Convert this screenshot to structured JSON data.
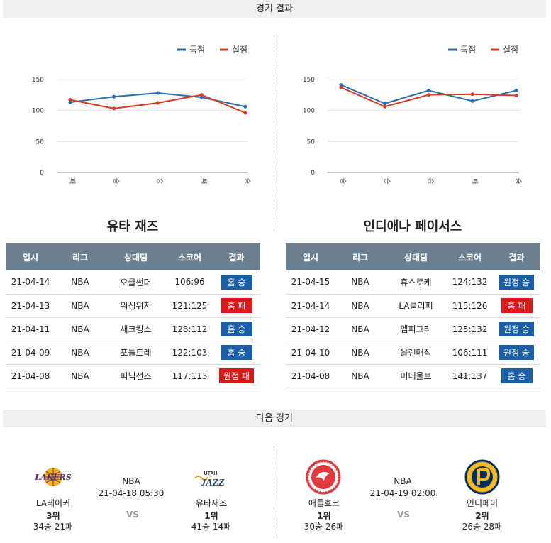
{
  "header": {
    "title": "경기 결과"
  },
  "next": {
    "title": "다음 경기"
  },
  "legend": {
    "score": "득점",
    "conceded": "실점"
  },
  "colors": {
    "score": "#2a6bb0",
    "conceded": "#d83a1f",
    "win": "#1a5fa8",
    "loss": "#d91a1a",
    "header": "#6b7f8e"
  },
  "left": {
    "team": "유타 재즈",
    "chart_data": {
      "type": "line",
      "categories": [
        "패",
        "승",
        "승",
        "패",
        "승"
      ],
      "yticks": [
        0,
        50,
        100,
        150
      ],
      "ylim": [
        0,
        160
      ],
      "series": [
        {
          "name": "득점",
          "values": [
            113,
            122,
            128,
            121,
            106
          ]
        },
        {
          "name": "실점",
          "values": [
            117,
            103,
            112,
            125,
            96
          ]
        }
      ]
    },
    "columns": [
      "일시",
      "리그",
      "상대팀",
      "스코어",
      "결과"
    ],
    "rows": [
      {
        "date": "21-04-14",
        "league": "NBA",
        "opp": "오클썬더",
        "score": "106:96",
        "result": "홈 승",
        "type": "win"
      },
      {
        "date": "21-04-13",
        "league": "NBA",
        "opp": "워싱위저",
        "score": "121:125",
        "result": "홈 패",
        "type": "loss"
      },
      {
        "date": "21-04-11",
        "league": "NBA",
        "opp": "새크킹스",
        "score": "128:112",
        "result": "홈 승",
        "type": "win"
      },
      {
        "date": "21-04-09",
        "league": "NBA",
        "opp": "포틀트레",
        "score": "122:103",
        "result": "홈 승",
        "type": "win"
      },
      {
        "date": "21-04-08",
        "league": "NBA",
        "opp": "피닉선즈",
        "score": "117:113",
        "result": "원정 패",
        "type": "loss"
      }
    ]
  },
  "right": {
    "team": "인디애나 페이서스",
    "chart_data": {
      "type": "line",
      "categories": [
        "승",
        "승",
        "승",
        "패",
        "승"
      ],
      "yticks": [
        0,
        50,
        100,
        150
      ],
      "ylim": [
        0,
        160
      ],
      "series": [
        {
          "name": "득점",
          "values": [
            141,
            111,
            132,
            115,
            132
          ]
        },
        {
          "name": "실점",
          "values": [
            137,
            106,
            125,
            126,
            124
          ]
        }
      ]
    },
    "columns": [
      "일시",
      "리그",
      "상대팀",
      "스코어",
      "결과"
    ],
    "rows": [
      {
        "date": "21-04-15",
        "league": "NBA",
        "opp": "휴스로케",
        "score": "124:132",
        "result": "원정 승",
        "type": "win"
      },
      {
        "date": "21-04-14",
        "league": "NBA",
        "opp": "LA클리퍼",
        "score": "115:126",
        "result": "홈 패",
        "type": "loss"
      },
      {
        "date": "21-04-12",
        "league": "NBA",
        "opp": "멤피그리",
        "score": "125:132",
        "result": "원정 승",
        "type": "win"
      },
      {
        "date": "21-04-10",
        "league": "NBA",
        "opp": "올랜매직",
        "score": "106:111",
        "result": "원정 승",
        "type": "win"
      },
      {
        "date": "21-04-08",
        "league": "NBA",
        "opp": "미네울브",
        "score": "141:137",
        "result": "홈 승",
        "type": "win"
      }
    ]
  },
  "match1": {
    "league": "NBA",
    "datetime": "21-04-18 05:30",
    "vs": "VS",
    "home": {
      "name": "LA레이커",
      "rank": "3위",
      "record": "34승 21패",
      "logo": "LAKERS"
    },
    "away": {
      "name": "유타재즈",
      "rank": "1위",
      "record": "41승 14패",
      "logo": "JAZZ"
    }
  },
  "match2": {
    "league": "NBA",
    "datetime": "21-04-19 02:00",
    "vs": "VS",
    "home": {
      "name": "애틀호크",
      "rank": "1위",
      "record": "30승 26패"
    },
    "away": {
      "name": "인디페이",
      "rank": "2위",
      "record": "26승 28패"
    }
  }
}
